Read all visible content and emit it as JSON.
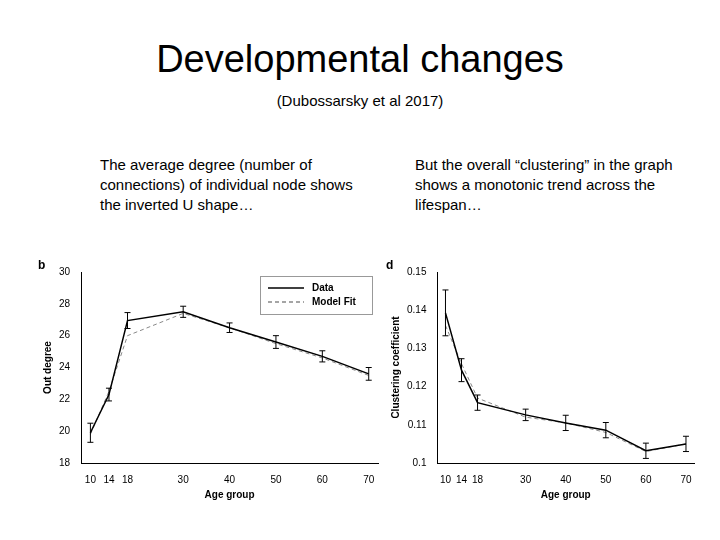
{
  "slide": {
    "title": "Developmental changes",
    "subtitle": "(Dubossarsky et al 2017)"
  },
  "chart_data": [
    {
      "type": "line",
      "title": "The average degree (number of connections) of individual node shows the inverted U shape…",
      "annotations": [
        "b"
      ],
      "x_label": "Age group",
      "y_label": "Out degree",
      "x": [
        10,
        14,
        18,
        30,
        40,
        50,
        60,
        70
      ],
      "series": [
        {
          "name": "Data",
          "color": "#000000",
          "line_style": "solid",
          "values": [
            19.9,
            22.3,
            26.95,
            27.5,
            26.5,
            25.6,
            24.7,
            23.6
          ],
          "error": [
            0.6,
            0.4,
            0.5,
            0.35,
            0.3,
            0.4,
            0.35,
            0.4
          ]
        },
        {
          "name": "Model Fit",
          "color": "#888888",
          "line_style": "dashed",
          "values": [
            19.8,
            22.5,
            26.0,
            27.4,
            26.5,
            25.5,
            24.6,
            23.5
          ]
        }
      ],
      "xlim": [
        8,
        72
      ],
      "xticks": [
        10,
        14,
        18,
        30,
        40,
        50,
        60,
        70
      ],
      "ylim": [
        18,
        30
      ],
      "yticks": [
        18,
        20,
        22,
        24,
        26,
        28,
        30
      ],
      "grid": false,
      "legend": "upper right"
    },
    {
      "type": "line",
      "title": "But the overall “clustering” in the graph shows a monotonic trend across the lifespan…",
      "annotations": [
        "d"
      ],
      "x_label": "Age group",
      "y_label": "Clustering coefficient",
      "x": [
        10,
        14,
        18,
        30,
        40,
        50,
        60,
        70
      ],
      "series": [
        {
          "color": "#000000",
          "line_style": "solid",
          "values": [
            0.1393,
            0.1243,
            0.1158,
            0.1126,
            0.1105,
            0.1086,
            0.1032,
            0.105
          ],
          "error": [
            0.006,
            0.003,
            0.002,
            0.0015,
            0.002,
            0.002,
            0.002,
            0.002
          ]
        },
        {
          "color": "#888888",
          "line_style": "dashed",
          "values": [
            0.136,
            0.126,
            0.117,
            0.112,
            0.1105,
            0.108,
            0.103,
            0.105
          ]
        }
      ],
      "xlim": [
        8,
        72
      ],
      "xticks": [
        10,
        14,
        18,
        30,
        40,
        50,
        60,
        70
      ],
      "ylim": [
        0.1,
        0.15
      ],
      "yticks": [
        0.1,
        0.11,
        0.12,
        0.13,
        0.14,
        0.15
      ],
      "grid": false
    }
  ]
}
